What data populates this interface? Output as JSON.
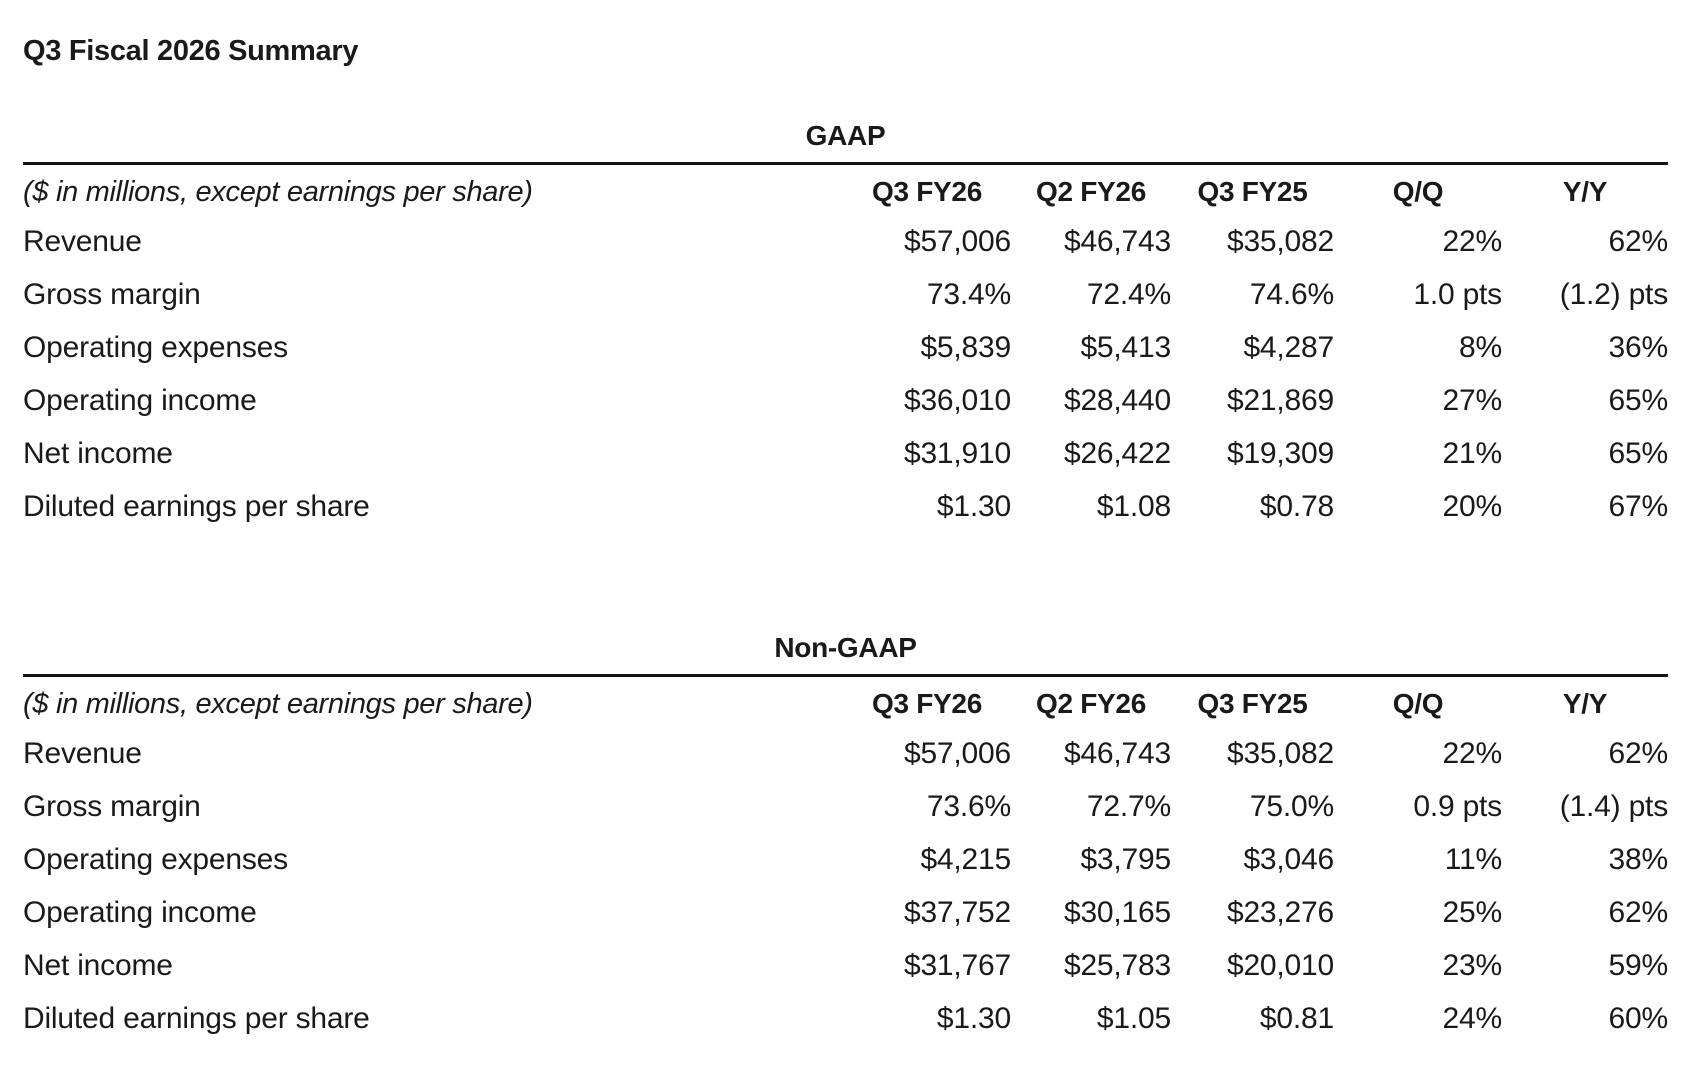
{
  "page": {
    "title": "Q3 Fiscal 2026 Summary"
  },
  "colors": {
    "text": "#1a1a1a",
    "rule": "#141414",
    "background": "#ffffff"
  },
  "tables": [
    {
      "section_title": "GAAP",
      "note": "($ in millions, except earnings per share)",
      "columns": [
        "Q3 FY26",
        "Q2 FY26",
        "Q3 FY25",
        "Q/Q",
        "Y/Y"
      ],
      "rows": [
        {
          "label": "Revenue",
          "values": [
            "$57,006",
            "$46,743",
            "$35,082",
            "22%",
            "62%"
          ]
        },
        {
          "label": "Gross margin",
          "values": [
            "73.4%",
            "72.4%",
            "74.6%",
            "1.0 pts",
            "(1.2) pts"
          ]
        },
        {
          "label": "Operating expenses",
          "values": [
            "$5,839",
            "$5,413",
            "$4,287",
            "8%",
            "36%"
          ]
        },
        {
          "label": "Operating income",
          "values": [
            "$36,010",
            "$28,440",
            "$21,869",
            "27%",
            "65%"
          ]
        },
        {
          "label": "Net income",
          "values": [
            "$31,910",
            "$26,422",
            "$19,309",
            "21%",
            "65%"
          ]
        },
        {
          "label": "Diluted earnings per share",
          "values": [
            "$1.30",
            "$1.08",
            "$0.78",
            "20%",
            "67%"
          ]
        }
      ]
    },
    {
      "section_title": "Non-GAAP",
      "note": "($ in millions, except earnings per share)",
      "columns": [
        "Q3 FY26",
        "Q2 FY26",
        "Q3 FY25",
        "Q/Q",
        "Y/Y"
      ],
      "rows": [
        {
          "label": "Revenue",
          "values": [
            "$57,006",
            "$46,743",
            "$35,082",
            "22%",
            "62%"
          ]
        },
        {
          "label": "Gross margin",
          "values": [
            "73.6%",
            "72.7%",
            "75.0%",
            "0.9 pts",
            "(1.4) pts"
          ]
        },
        {
          "label": "Operating expenses",
          "values": [
            "$4,215",
            "$3,795",
            "$3,046",
            "11%",
            "38%"
          ]
        },
        {
          "label": "Operating income",
          "values": [
            "$37,752",
            "$30,165",
            "$23,276",
            "25%",
            "62%"
          ]
        },
        {
          "label": "Net income",
          "values": [
            "$31,767",
            "$25,783",
            "$20,010",
            "23%",
            "59%"
          ]
        },
        {
          "label": "Diluted earnings per share",
          "values": [
            "$1.30",
            "$1.05",
            "$0.81",
            "24%",
            "60%"
          ]
        }
      ]
    }
  ]
}
